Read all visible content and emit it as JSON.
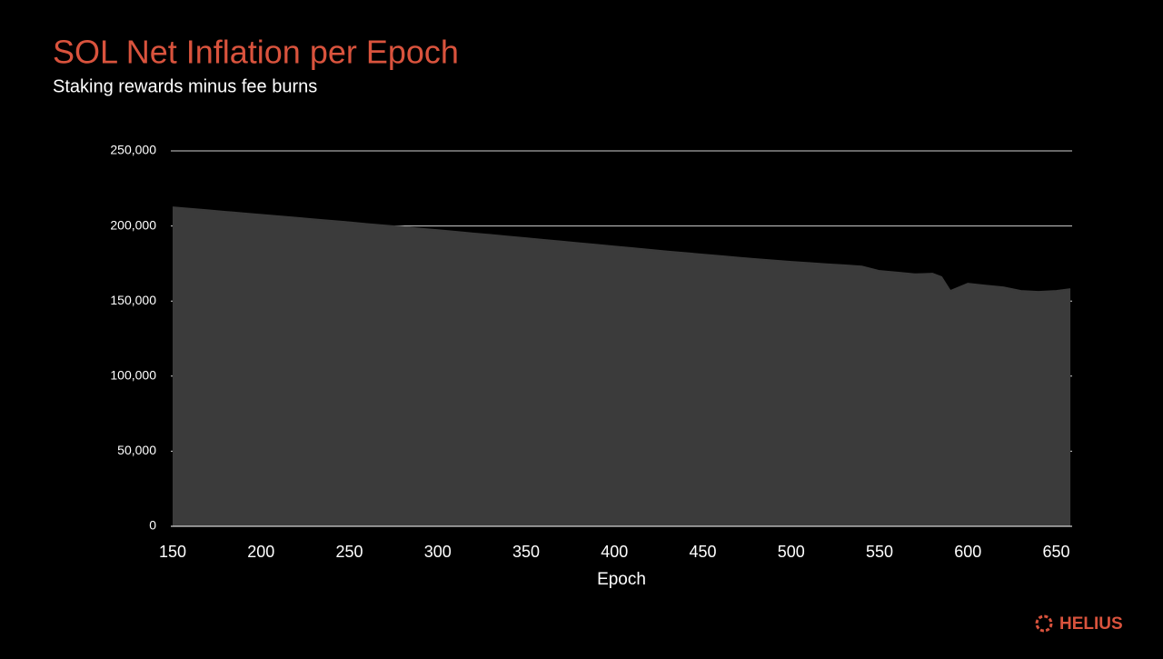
{
  "chart_data": {
    "type": "area",
    "title": "SOL Net Inflation per Epoch",
    "subtitle": "Staking rewards minus fee burns",
    "x_label": "Epoch",
    "logo": "HELIUS",
    "color": "#3b3b3b",
    "title_color": "#d9533d",
    "grid": true,
    "xlim": [
      150,
      659
    ],
    "xticks": [
      150,
      200,
      250,
      300,
      350,
      400,
      450,
      500,
      550,
      600,
      650
    ],
    "ylim": [
      0,
      250000
    ],
    "yticks": [
      0,
      {
        "value": 50000,
        "label": "50,000"
      },
      {
        "value": 100000,
        "label": "100,000"
      },
      {
        "value": 150000,
        "label": "150,000"
      },
      {
        "value": 200000,
        "label": "200,000"
      },
      {
        "value": 250000,
        "label": "250,000"
      }
    ],
    "x": [
      150,
      160,
      170,
      180,
      190,
      200,
      210,
      220,
      230,
      240,
      250,
      260,
      270,
      280,
      290,
      300,
      310,
      320,
      330,
      340,
      350,
      360,
      370,
      380,
      390,
      400,
      410,
      420,
      430,
      440,
      450,
      460,
      470,
      480,
      490,
      500,
      510,
      520,
      530,
      540,
      550,
      560,
      570,
      580,
      585,
      590,
      600,
      610,
      620,
      630,
      640,
      650,
      658
    ],
    "values": [
      212400,
      211400,
      210400,
      209400,
      208400,
      207400,
      206400,
      205400,
      204400,
      203400,
      202400,
      201300,
      200300,
      199300,
      198200,
      197200,
      196100,
      195000,
      194000,
      192900,
      191800,
      190700,
      189600,
      188500,
      187400,
      186300,
      185200,
      184100,
      183000,
      182000,
      180900,
      179900,
      178900,
      177900,
      177000,
      176100,
      175300,
      174500,
      173800,
      173000,
      170000,
      169000,
      167800,
      168200,
      166000,
      156700,
      161500,
      160300,
      159100,
      156700,
      156100,
      156700,
      157900
    ]
  }
}
